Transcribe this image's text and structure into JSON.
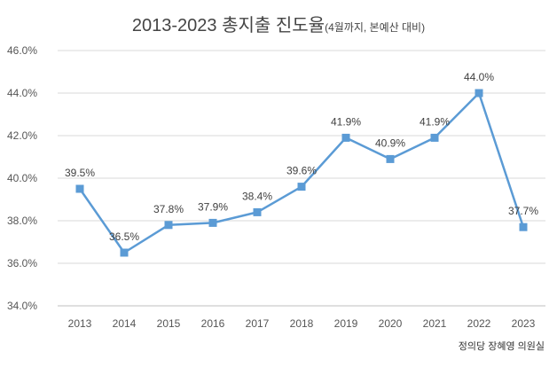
{
  "chart_data": {
    "type": "line",
    "title": "2013-2023 총지출 진도율",
    "subtitle": "(4월까지, 본예산 대비)",
    "source": "정의당 장혜영 의원실",
    "categories": [
      "2013",
      "2014",
      "2015",
      "2016",
      "2017",
      "2018",
      "2019",
      "2020",
      "2021",
      "2022",
      "2023"
    ],
    "values": [
      39.5,
      36.5,
      37.8,
      37.9,
      38.4,
      39.6,
      41.9,
      40.9,
      41.9,
      44.0,
      37.7
    ],
    "data_labels": [
      "39.5%",
      "36.5%",
      "37.8%",
      "37.9%",
      "38.4%",
      "39.6%",
      "41.9%",
      "40.9%",
      "41.9%",
      "44.0%",
      "37.7%"
    ],
    "ylim": [
      34,
      46
    ],
    "yticks": [
      "34.0%",
      "36.0%",
      "38.0%",
      "40.0%",
      "42.0%",
      "44.0%",
      "46.0%"
    ],
    "grid": true,
    "legend": "none",
    "color": "#5b9bd5",
    "marker": "square"
  }
}
